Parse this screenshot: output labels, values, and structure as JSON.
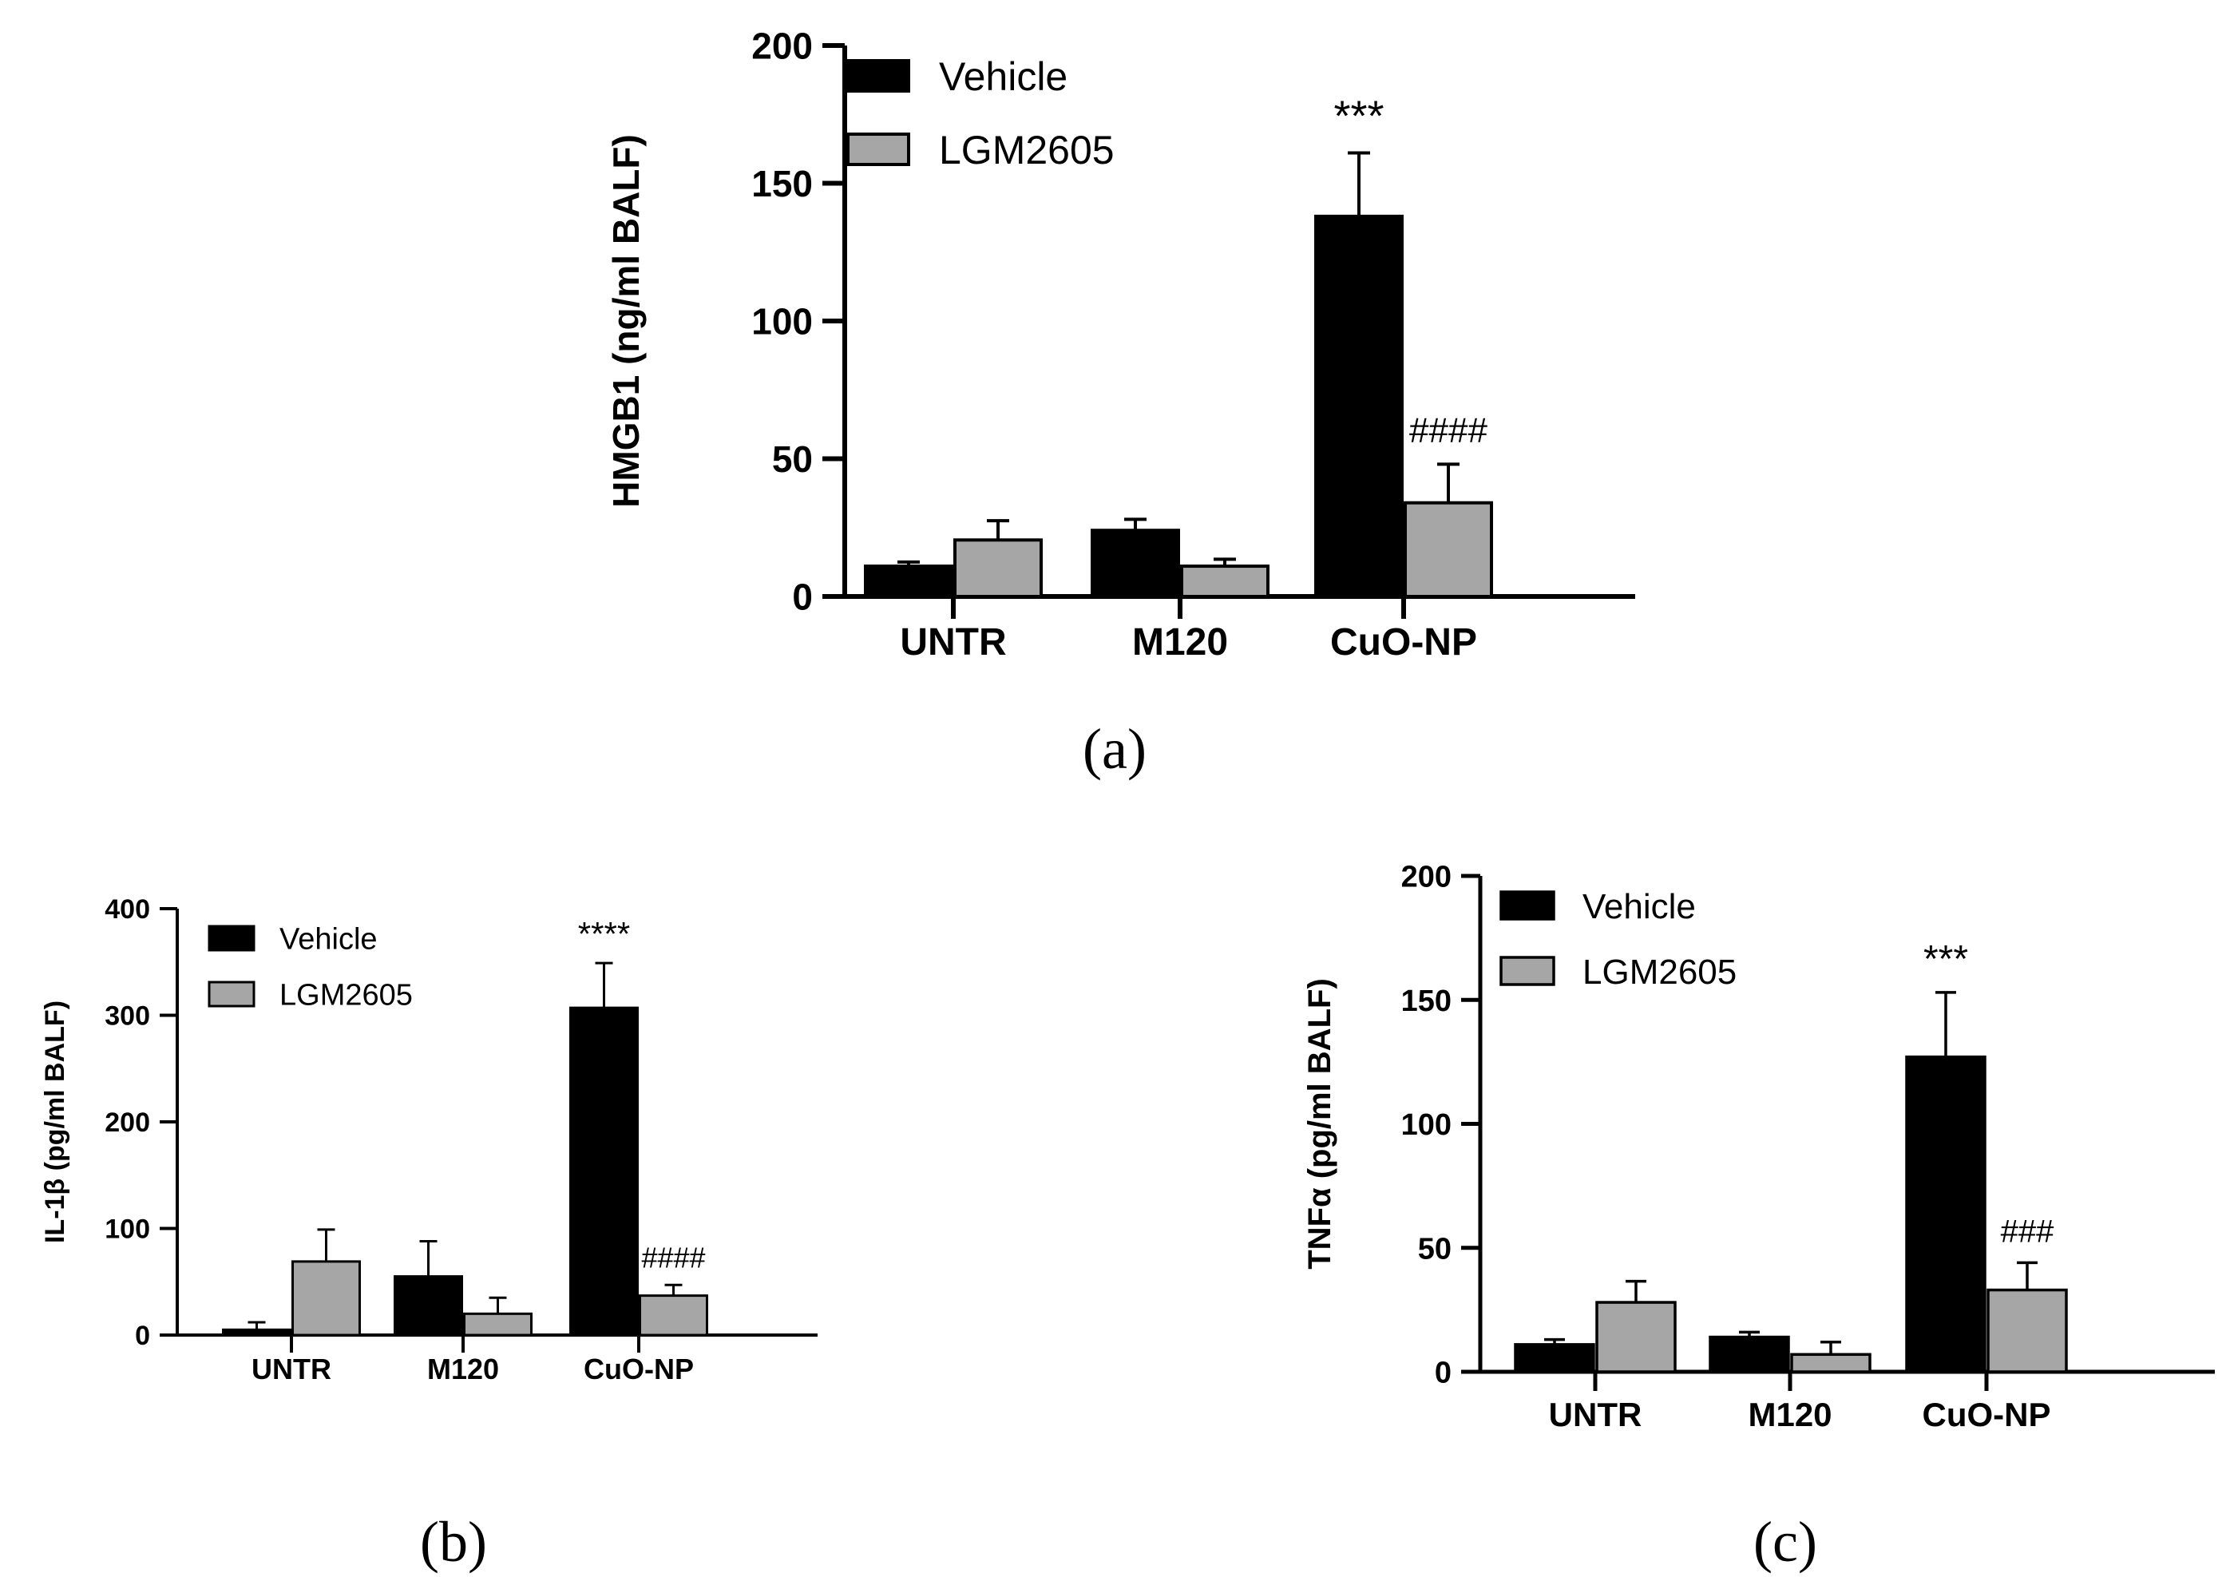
{
  "chart_data": [
    {
      "type": "bar",
      "panel_label": "(a)",
      "ylabel": "HMGB1 (ng/ml BALF)",
      "ylim": [
        0,
        200
      ],
      "yticks": [
        0,
        50,
        100,
        150,
        200
      ],
      "categories": [
        "UNTR",
        "M120",
        "CuO-NP"
      ],
      "series": [
        {
          "name": "Vehicle",
          "color": "#000000",
          "values": [
            11,
            24,
            138
          ],
          "errors": [
            1.5,
            4,
            23
          ]
        },
        {
          "name": "LGM2605",
          "color": "#a6a6a6",
          "values": [
            20.5,
            11,
            34
          ],
          "errors": [
            7,
            2.5,
            14
          ]
        }
      ],
      "annotations": [
        {
          "category": "CuO-NP",
          "series": "Vehicle",
          "text": "***"
        },
        {
          "category": "CuO-NP",
          "series": "LGM2605",
          "text": "####"
        }
      ],
      "legend_position": "top-left"
    },
    {
      "type": "bar",
      "panel_label": "(b)",
      "ylabel": "IL-1β (pg/ml BALF)",
      "ylim": [
        0,
        400
      ],
      "yticks": [
        0,
        100,
        200,
        300,
        400
      ],
      "categories": [
        "UNTR",
        "M120",
        "CuO-NP"
      ],
      "series": [
        {
          "name": "Vehicle",
          "color": "#000000",
          "values": [
            5,
            55,
            307
          ],
          "errors": [
            7,
            33,
            42
          ]
        },
        {
          "name": "LGM2605",
          "color": "#a6a6a6",
          "values": [
            69,
            20,
            37
          ],
          "errors": [
            30,
            15,
            10
          ]
        }
      ],
      "annotations": [
        {
          "category": "CuO-NP",
          "series": "Vehicle",
          "text": "****"
        },
        {
          "category": "CuO-NP",
          "series": "LGM2605",
          "text": "####"
        }
      ],
      "legend_position": "top-left"
    },
    {
      "type": "bar",
      "panel_label": "(c)",
      "ylabel": "TNFα (pg/ml BALF)",
      "ylim": [
        0,
        200
      ],
      "yticks": [
        0,
        50,
        100,
        150,
        200
      ],
      "categories": [
        "UNTR",
        "M120",
        "CuO-NP"
      ],
      "series": [
        {
          "name": "Vehicle",
          "color": "#000000",
          "values": [
            11,
            14,
            127
          ],
          "errors": [
            2,
            2,
            26
          ]
        },
        {
          "name": "LGM2605",
          "color": "#a6a6a6",
          "values": [
            28,
            7,
            33
          ],
          "errors": [
            8.5,
            5,
            11
          ]
        }
      ],
      "annotations": [
        {
          "category": "CuO-NP",
          "series": "Vehicle",
          "text": "***"
        },
        {
          "category": "CuO-NP",
          "series": "LGM2605",
          "text": "###"
        }
      ],
      "legend_position": "top-left"
    }
  ]
}
